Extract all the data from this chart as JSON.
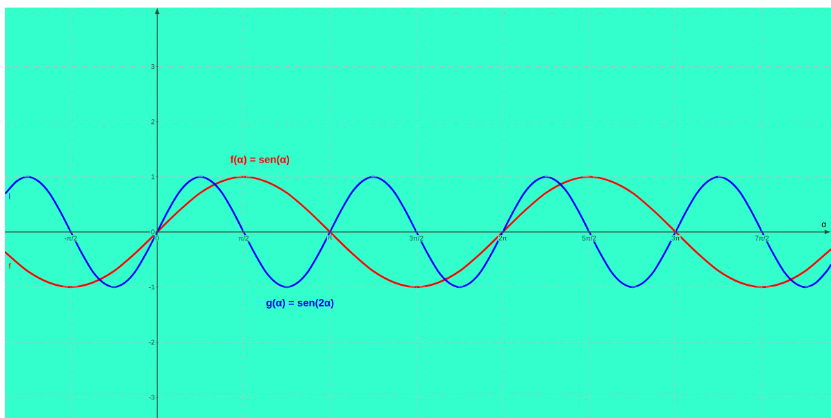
{
  "chart_data": {
    "type": "line",
    "xlabel": "α",
    "xlim": [
      -2.77,
      12.25
    ],
    "ylim": [
      -3.375,
      4.07
    ],
    "xticks": [
      {
        "value": -1.5708,
        "label": "-π/2"
      },
      {
        "value": 0,
        "label": "0"
      },
      {
        "value": 1.5708,
        "label": "π/2"
      },
      {
        "value": 3.1416,
        "label": "π"
      },
      {
        "value": 4.7124,
        "label": "3π/2"
      },
      {
        "value": 6.2832,
        "label": "2π"
      },
      {
        "value": 7.854,
        "label": "5π/2"
      },
      {
        "value": 9.4248,
        "label": "3π"
      },
      {
        "value": 10.9956,
        "label": "7π/2"
      }
    ],
    "yticks": [
      -3,
      -2,
      -1,
      0,
      1,
      2,
      3,
      {
        "value": 4,
        "label": null
      }
    ],
    "grid": true,
    "marker": "none",
    "line_style": "solid",
    "series": [
      {
        "color": "#ff0000",
        "x": [
          -2.77,
          -2.7489,
          -2.3562,
          -1.9635,
          -1.5708,
          -1.1781,
          -0.7854,
          -0.3927,
          0,
          0.3927,
          0.7854,
          1.1781,
          1.5708,
          1.9635,
          2.3562,
          2.7489,
          3.1416,
          3.5343,
          3.927,
          4.3197,
          4.7124,
          5.1051,
          5.4978,
          5.8905,
          6.2832,
          6.6759,
          7.0686,
          7.4613,
          7.854,
          8.2467,
          8.6394,
          9.0321,
          9.4248,
          9.8175,
          10.2102,
          10.6029,
          10.9956,
          11.3883,
          11.781,
          12.1737,
          12.25
        ],
        "values": [
          -0.36,
          -0.38,
          -0.71,
          -0.92,
          -1,
          -0.92,
          -0.71,
          -0.38,
          0,
          0.38,
          0.71,
          0.92,
          1,
          0.92,
          0.71,
          0.38,
          0,
          -0.38,
          -0.71,
          -0.92,
          -1,
          -0.92,
          -0.71,
          -0.38,
          0,
          0.38,
          0.71,
          0.92,
          1,
          0.92,
          0.71,
          0.38,
          0,
          -0.38,
          -0.71,
          -0.92,
          -1,
          -0.92,
          -0.71,
          -0.38,
          -0.31
        ]
      },
      {
        "color": "#0000ff",
        "x": [
          -2.77,
          -2.7489,
          -2.5525,
          -2.3562,
          -2.1598,
          -1.9635,
          -1.7671,
          -1.5708,
          -1.3744,
          -1.1781,
          -0.9817,
          -0.7854,
          -0.589,
          -0.3927,
          -0.1963,
          0,
          0.1963,
          0.3927,
          0.589,
          0.7854,
          0.9817,
          1.1781,
          1.3744,
          1.5708,
          1.7671,
          1.9635,
          2.1598,
          2.3562,
          2.5525,
          2.7489,
          2.9452,
          3.1416,
          3.3379,
          3.5343,
          3.7306,
          3.927,
          4.1233,
          4.3197,
          4.516,
          4.7124,
          4.9087,
          5.1051,
          5.3014,
          5.4978,
          5.6941,
          5.8905,
          6.0868,
          6.2832,
          6.4795,
          6.6759,
          6.8722,
          7.0686,
          7.2649,
          7.4613,
          7.6576,
          7.854,
          8.0503,
          8.2467,
          8.443,
          8.6394,
          8.8357,
          9.0321,
          9.2284,
          9.4248,
          9.6211,
          9.8175,
          10.0138,
          10.2102,
          10.4065,
          10.6029,
          10.7992,
          10.9956,
          11.1919,
          11.3883,
          11.5846,
          11.781,
          11.9773,
          12.1737,
          12.25
        ],
        "values": [
          0.68,
          0.71,
          0.92,
          1,
          0.92,
          0.71,
          0.38,
          0,
          -0.38,
          -0.71,
          -0.92,
          -1,
          -0.92,
          -0.71,
          -0.38,
          0,
          0.38,
          0.71,
          0.92,
          1,
          0.92,
          0.71,
          0.38,
          0,
          -0.38,
          -0.71,
          -0.92,
          -1,
          -0.92,
          -0.71,
          -0.38,
          0,
          0.38,
          0.71,
          0.92,
          1,
          0.92,
          0.71,
          0.38,
          0,
          -0.38,
          -0.71,
          -0.92,
          -1,
          -0.92,
          -0.71,
          -0.38,
          0,
          0.38,
          0.71,
          0.92,
          1,
          0.92,
          0.71,
          0.38,
          0,
          -0.38,
          -0.71,
          -0.92,
          -1,
          -0.92,
          -0.71,
          -0.38,
          0,
          0.38,
          0.71,
          0.92,
          1,
          0.92,
          0.71,
          0.38,
          0,
          -0.38,
          -0.71,
          -0.92,
          -1,
          -0.92,
          -0.71,
          -0.59
        ]
      }
    ],
    "annotations": [
      "f(α) = sen(α)",
      "g(α) = sen(2α)",
      "f",
      "l"
    ]
  }
}
